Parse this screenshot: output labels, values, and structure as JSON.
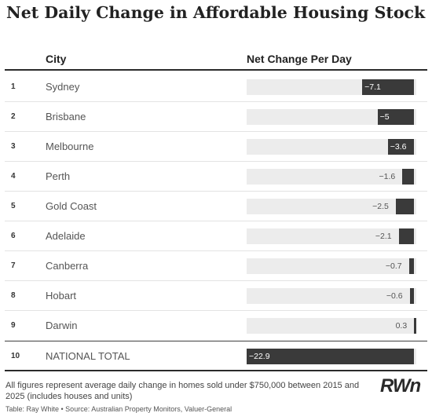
{
  "chart_data": {
    "type": "table",
    "title": "Net Daily Change in Affordable Housing Stock",
    "columns": [
      "City",
      "Net Change Per Day"
    ],
    "rows": [
      {
        "rank": "1",
        "city": "Sydney",
        "value": -7.1,
        "label": "−7.1"
      },
      {
        "rank": "2",
        "city": "Brisbane",
        "value": -5,
        "label": "−5"
      },
      {
        "rank": "3",
        "city": "Melbourne",
        "value": -3.6,
        "label": "−3.6"
      },
      {
        "rank": "4",
        "city": "Perth",
        "value": -1.6,
        "label": "−1.6"
      },
      {
        "rank": "5",
        "city": "Gold Coast",
        "value": -2.5,
        "label": "−2.5"
      },
      {
        "rank": "6",
        "city": "Adelaide",
        "value": -2.1,
        "label": "−2.1"
      },
      {
        "rank": "7",
        "city": "Canberra",
        "value": -0.7,
        "label": "−0.7"
      },
      {
        "rank": "8",
        "city": "Hobart",
        "value": -0.6,
        "label": "−0.6"
      },
      {
        "rank": "9",
        "city": "Darwin",
        "value": 0.3,
        "label": "0.3"
      },
      {
        "rank": "10",
        "city": "NATIONAL TOTAL",
        "value": -22.9,
        "label": "−22.9"
      }
    ],
    "bar_color": "#3a3a3a",
    "track_color": "#ececec",
    "ylim": [
      -22.9,
      0.3
    ]
  },
  "footnote": "All figures represent average daily change in homes sold under $750,000 between 2015 and 2025 (includes houses and units)",
  "source": "Table: Ray White • Source: Australian Property Monitors, Valuer-General",
  "logo": "RWn"
}
